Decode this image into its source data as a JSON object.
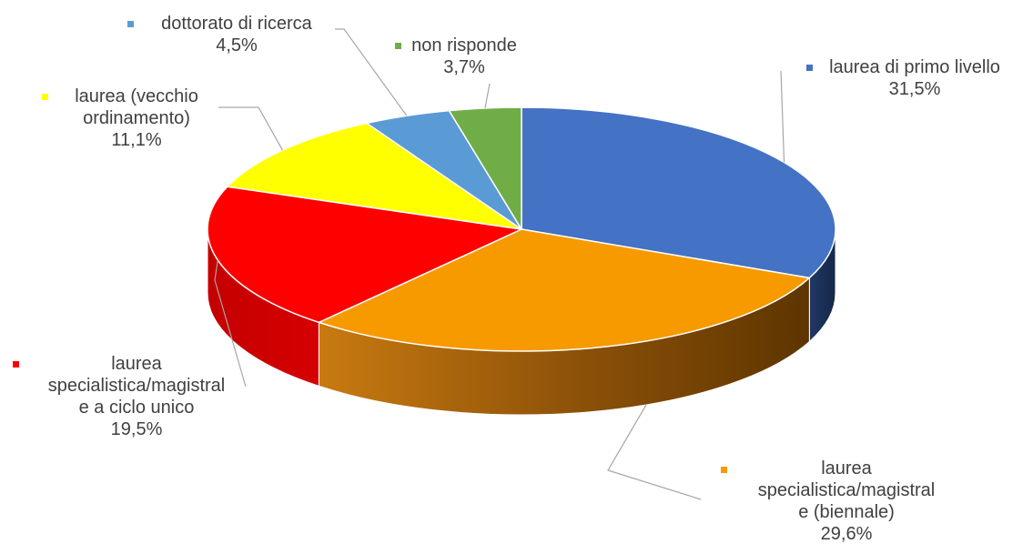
{
  "chart_data": {
    "type": "pie",
    "style": "3d-pie",
    "start_angle_deg": 90,
    "direction": "clockwise",
    "slices": [
      {
        "name": "laurea di primo livello",
        "value": 31.5,
        "label": "31,5%",
        "color": "#4472C4"
      },
      {
        "name": "laurea specialistica/magistrale (biennale)",
        "value": 29.6,
        "label": "29,6%",
        "color": "#F79A00"
      },
      {
        "name": "laurea specialistica/magistrale a ciclo unico",
        "value": 19.5,
        "label": "19,5%",
        "color": "#FF0000"
      },
      {
        "name": "laurea (vecchio ordinamento)",
        "value": 11.1,
        "label": "11,1%",
        "color": "#FFFF00"
      },
      {
        "name": "dottorato di ricerca",
        "value": 4.5,
        "label": "4,5%",
        "color": "#5B9BD5"
      },
      {
        "name": "non risponde",
        "value": 3.7,
        "label": "3,7%",
        "color": "#70AD47"
      }
    ],
    "label_text": [
      "laurea di primo livello",
      "laurea\nspecialistica/magistral\ne (biennale)",
      "laurea\nspecialistica/magistral\ne a ciclo unico",
      "laurea (vecchio\nordinamento)",
      "dottorato di ricerca",
      "non risponde"
    ],
    "legend": "none",
    "data_labels": "outside-with-leader-lines"
  }
}
